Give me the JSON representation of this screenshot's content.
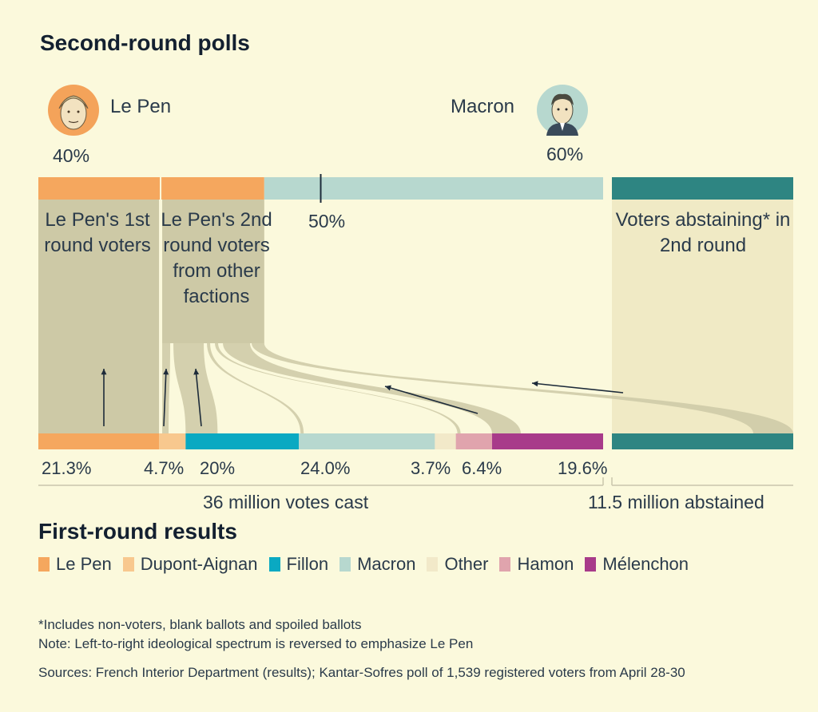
{
  "title": "Second-round polls",
  "candidates": {
    "le_pen": {
      "name": "Le Pen",
      "pct_label": "40%"
    },
    "macron": {
      "name": "Macron",
      "pct_label": "60%"
    }
  },
  "midpoint_label": "50%",
  "annotations": {
    "lepen_1st": "Le Pen's 1st round voters",
    "lepen_2nd": "Le Pen's 2nd round voters from other factions",
    "abstain": "Voters abstaining* in 2nd round"
  },
  "totals": {
    "cast": "36 million votes cast",
    "abstained": "11.5 million abstained"
  },
  "legend_title": "First-round results",
  "footnotes": {
    "line1": "*Includes non-voters, blank ballots and spoiled ballots",
    "line2": "Note: Left-to-right ideological spectrum is reversed to emphasize Le Pen",
    "sources": "Sources: French Interior Department (results); Kantar-Sofres poll of 1,539 registered voters from April 28-30"
  },
  "colors": {
    "le_pen": "#f5a75e",
    "dupont_aignan": "#f8c88e",
    "fillon": "#0aa9c2",
    "macron": "#b7d8cf",
    "other": "#f2e9c9",
    "hamon": "#e0a4ad",
    "melenchon": "#a83b8a",
    "abstain": "#2e8582",
    "flow_lepen": "#cdc9a6",
    "flow_macron": "#ede6bf"
  },
  "chart_data": {
    "type": "sankey",
    "first_round": {
      "categories": [
        "Le Pen",
        "Dupont-Aignan",
        "Fillon",
        "Macron",
        "Other",
        "Hamon",
        "Mélenchon"
      ],
      "values": [
        21.3,
        4.7,
        20.0,
        24.0,
        3.7,
        6.4,
        19.6
      ],
      "labels": [
        "21.3%",
        "4.7%",
        "20%",
        "24.0%",
        "3.7%",
        "6.4%",
        "19.6%"
      ],
      "abstained_millions": 11.5,
      "cast_millions": 36
    },
    "second_round": {
      "categories": [
        "Le Pen",
        "Macron"
      ],
      "values": [
        40,
        60
      ],
      "midpoint": 50
    },
    "legend": [
      "Le Pen",
      "Dupont-Aignan",
      "Fillon",
      "Macron",
      "Other",
      "Hamon",
      "Mélenchon"
    ]
  }
}
